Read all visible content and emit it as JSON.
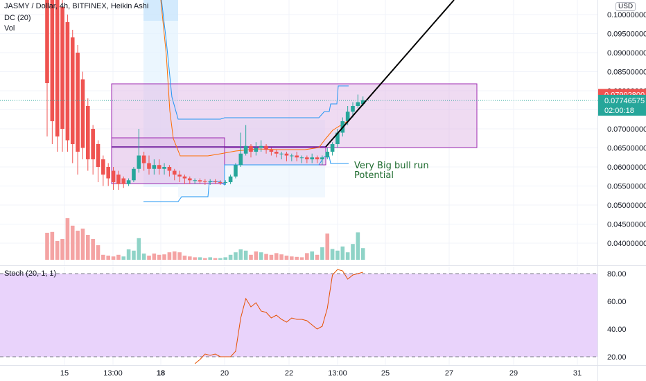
{
  "header": {
    "title": "JASMY / Dollar, 4h, BITFINEX, Heikin Ashi",
    "indicator_dc": "DC (20)",
    "indicator_vol": "Vol",
    "currency": "USD"
  },
  "stoch_label": "Stoch (20, 1, 1)",
  "annotation": [
    "Very Big bull run",
    "Potential"
  ],
  "price_labels": {
    "red": {
      "text": "0.07902800",
      "color": "#ef5350"
    },
    "teal_price": {
      "text": "0.07746575",
      "color": "#26a69a"
    },
    "teal_time": {
      "text": "02:00:18"
    }
  },
  "colors": {
    "up": "#26a69a",
    "down": "#ef5350",
    "vol_up": "#8fd3c7",
    "vol_down": "#f4a3a3",
    "dc": "#2196f3",
    "ma": "#ff6d00",
    "box_fill": "#e1bee7",
    "box_stroke": "#9c27b0",
    "stoch_band": "#e9d3fb",
    "stoch_line": "#e65100"
  },
  "chart_data": [
    {
      "type": "candlestick",
      "title": "JASMY / Dollar, 4h, BITFINEX, Heikin Ashi",
      "ylim": [
        0.036,
        0.102
      ],
      "y_ticks": [
        "0.10000000",
        "0.09500000",
        "0.09000000",
        "0.08500000",
        "0.08000000",
        "0.07500000",
        "0.07000000",
        "0.06500000",
        "0.06000000",
        "0.05500000",
        "0.05000000",
        "0.04500000",
        "0.04000000"
      ],
      "x_ticks": [
        "15",
        "13:00",
        "18",
        "20",
        "22",
        "13:00",
        "25",
        "27",
        "29",
        "31"
      ],
      "candles": [
        {
          "o": 0.12,
          "c": 0.082,
          "h": 0.125,
          "l": 0.068
        },
        {
          "o": 0.11,
          "c": 0.072,
          "h": 0.115,
          "l": 0.066
        },
        {
          "o": 0.104,
          "c": 0.068,
          "h": 0.108,
          "l": 0.064
        },
        {
          "o": 0.102,
          "c": 0.07,
          "h": 0.104,
          "l": 0.064
        },
        {
          "o": 0.098,
          "c": 0.067,
          "h": 0.1,
          "l": 0.064
        },
        {
          "o": 0.094,
          "c": 0.066,
          "h": 0.096,
          "l": 0.061
        },
        {
          "o": 0.09,
          "c": 0.064,
          "h": 0.092,
          "l": 0.058
        },
        {
          "o": 0.083,
          "c": 0.065,
          "h": 0.085,
          "l": 0.062
        },
        {
          "o": 0.076,
          "c": 0.062,
          "h": 0.078,
          "l": 0.059
        },
        {
          "o": 0.07,
          "c": 0.062,
          "h": 0.071,
          "l": 0.058
        },
        {
          "o": 0.066,
          "c": 0.06,
          "h": 0.067,
          "l": 0.056
        },
        {
          "o": 0.062,
          "c": 0.058,
          "h": 0.063,
          "l": 0.055
        },
        {
          "o": 0.06,
          "c": 0.057,
          "h": 0.061,
          "l": 0.055
        },
        {
          "o": 0.059,
          "c": 0.056,
          "h": 0.06,
          "l": 0.054
        },
        {
          "o": 0.058,
          "c": 0.0555,
          "h": 0.059,
          "l": 0.054
        },
        {
          "o": 0.057,
          "c": 0.0555,
          "h": 0.0575,
          "l": 0.0545
        },
        {
          "o": 0.0555,
          "c": 0.0565,
          "h": 0.057,
          "l": 0.055
        },
        {
          "o": 0.0565,
          "c": 0.0595,
          "h": 0.06,
          "l": 0.056
        },
        {
          "o": 0.0595,
          "c": 0.063,
          "h": 0.07,
          "l": 0.0585
        },
        {
          "o": 0.063,
          "c": 0.061,
          "h": 0.064,
          "l": 0.059
        },
        {
          "o": 0.061,
          "c": 0.0595,
          "h": 0.063,
          "l": 0.058
        },
        {
          "o": 0.0595,
          "c": 0.0605,
          "h": 0.062,
          "l": 0.058
        },
        {
          "o": 0.0605,
          "c": 0.0595,
          "h": 0.062,
          "l": 0.058
        },
        {
          "o": 0.0595,
          "c": 0.06,
          "h": 0.061,
          "l": 0.058
        },
        {
          "o": 0.06,
          "c": 0.059,
          "h": 0.0605,
          "l": 0.0575
        },
        {
          "o": 0.059,
          "c": 0.058,
          "h": 0.0595,
          "l": 0.0565
        },
        {
          "o": 0.058,
          "c": 0.0575,
          "h": 0.059,
          "l": 0.056
        },
        {
          "o": 0.0575,
          "c": 0.057,
          "h": 0.058,
          "l": 0.0555
        },
        {
          "o": 0.057,
          "c": 0.0565,
          "h": 0.0575,
          "l": 0.0555
        },
        {
          "o": 0.0565,
          "c": 0.0565,
          "h": 0.057,
          "l": 0.0555
        },
        {
          "o": 0.0565,
          "c": 0.0562,
          "h": 0.057,
          "l": 0.0555
        },
        {
          "o": 0.0562,
          "c": 0.056,
          "h": 0.0568,
          "l": 0.0553
        },
        {
          "o": 0.056,
          "c": 0.0562,
          "h": 0.0568,
          "l": 0.0553
        },
        {
          "o": 0.0562,
          "c": 0.056,
          "h": 0.0568,
          "l": 0.0555
        },
        {
          "o": 0.056,
          "c": 0.0558,
          "h": 0.0565,
          "l": 0.0553
        },
        {
          "o": 0.0558,
          "c": 0.056,
          "h": 0.0565,
          "l": 0.0553
        },
        {
          "o": 0.056,
          "c": 0.0575,
          "h": 0.058,
          "l": 0.0555
        },
        {
          "o": 0.0575,
          "c": 0.0605,
          "h": 0.061,
          "l": 0.057
        },
        {
          "o": 0.0605,
          "c": 0.0635,
          "h": 0.069,
          "l": 0.06
        },
        {
          "o": 0.0635,
          "c": 0.0655,
          "h": 0.071,
          "l": 0.063
        },
        {
          "o": 0.0655,
          "c": 0.064,
          "h": 0.066,
          "l": 0.0625
        },
        {
          "o": 0.064,
          "c": 0.065,
          "h": 0.0665,
          "l": 0.063
        },
        {
          "o": 0.065,
          "c": 0.0655,
          "h": 0.067,
          "l": 0.064
        },
        {
          "o": 0.0655,
          "c": 0.0645,
          "h": 0.066,
          "l": 0.0635
        },
        {
          "o": 0.0645,
          "c": 0.064,
          "h": 0.065,
          "l": 0.063
        },
        {
          "o": 0.064,
          "c": 0.0635,
          "h": 0.0645,
          "l": 0.0625
        },
        {
          "o": 0.0635,
          "c": 0.0635,
          "h": 0.064,
          "l": 0.062
        },
        {
          "o": 0.0635,
          "c": 0.063,
          "h": 0.064,
          "l": 0.0615
        },
        {
          "o": 0.063,
          "c": 0.063,
          "h": 0.0635,
          "l": 0.0615
        },
        {
          "o": 0.063,
          "c": 0.0625,
          "h": 0.064,
          "l": 0.0615
        },
        {
          "o": 0.0625,
          "c": 0.0625,
          "h": 0.063,
          "l": 0.061
        },
        {
          "o": 0.0625,
          "c": 0.062,
          "h": 0.063,
          "l": 0.061
        },
        {
          "o": 0.062,
          "c": 0.0625,
          "h": 0.0635,
          "l": 0.061
        },
        {
          "o": 0.0625,
          "c": 0.062,
          "h": 0.063,
          "l": 0.061
        },
        {
          "o": 0.062,
          "c": 0.0625,
          "h": 0.063,
          "l": 0.0605
        },
        {
          "o": 0.0625,
          "c": 0.064,
          "h": 0.065,
          "l": 0.062
        },
        {
          "o": 0.064,
          "c": 0.066,
          "h": 0.0665,
          "l": 0.063
        },
        {
          "o": 0.066,
          "c": 0.069,
          "h": 0.07,
          "l": 0.065
        },
        {
          "o": 0.069,
          "c": 0.072,
          "h": 0.073,
          "l": 0.068
        },
        {
          "o": 0.072,
          "c": 0.0745,
          "h": 0.076,
          "l": 0.071
        },
        {
          "o": 0.0745,
          "c": 0.076,
          "h": 0.077,
          "l": 0.073
        },
        {
          "o": 0.076,
          "c": 0.077,
          "h": 0.079,
          "l": 0.0755
        },
        {
          "o": 0.0765,
          "c": 0.0775,
          "h": 0.0785,
          "l": 0.076
        }
      ],
      "volume": [
        {
          "v": 0.0065,
          "up": false
        },
        {
          "v": 0.0067,
          "up": false
        },
        {
          "v": 0.0045,
          "up": false
        },
        {
          "v": 0.005,
          "up": false
        },
        {
          "v": 0.01,
          "up": false
        },
        {
          "v": 0.0082,
          "up": false
        },
        {
          "v": 0.007,
          "up": false
        },
        {
          "v": 0.0075,
          "up": false
        },
        {
          "v": 0.006,
          "up": false
        },
        {
          "v": 0.005,
          "up": false
        },
        {
          "v": 0.0035,
          "up": false
        },
        {
          "v": 0.0012,
          "up": false
        },
        {
          "v": 0.001,
          "up": false
        },
        {
          "v": 0.0008,
          "up": false
        },
        {
          "v": 0.0012,
          "up": false
        },
        {
          "v": 0.0008,
          "up": true
        },
        {
          "v": 0.0025,
          "up": true
        },
        {
          "v": 0.0022,
          "up": true
        },
        {
          "v": 0.0052,
          "up": true
        },
        {
          "v": 0.0015,
          "up": true
        },
        {
          "v": 0.001,
          "up": false
        },
        {
          "v": 0.0015,
          "up": false
        },
        {
          "v": 0.0012,
          "up": false
        },
        {
          "v": 0.0013,
          "up": false
        },
        {
          "v": 0.0018,
          "up": false
        },
        {
          "v": 0.002,
          "up": false
        },
        {
          "v": 0.0018,
          "up": false
        },
        {
          "v": 0.001,
          "up": false
        },
        {
          "v": 0.0008,
          "up": false
        },
        {
          "v": 0.0006,
          "up": false
        },
        {
          "v": 0.0006,
          "up": true
        },
        {
          "v": 0.0004,
          "up": false
        },
        {
          "v": 0.0006,
          "up": true
        },
        {
          "v": 0.0004,
          "up": false
        },
        {
          "v": 0.0004,
          "up": true
        },
        {
          "v": 0.0006,
          "up": true
        },
        {
          "v": 0.0012,
          "up": true
        },
        {
          "v": 0.0018,
          "up": true
        },
        {
          "v": 0.0025,
          "up": true
        },
        {
          "v": 0.0022,
          "up": true
        },
        {
          "v": 0.0012,
          "up": false
        },
        {
          "v": 0.002,
          "up": false
        },
        {
          "v": 0.0018,
          "up": true
        },
        {
          "v": 0.0014,
          "up": false
        },
        {
          "v": 0.0012,
          "up": false
        },
        {
          "v": 0.0016,
          "up": false
        },
        {
          "v": 0.0013,
          "up": false
        },
        {
          "v": 0.001,
          "up": false
        },
        {
          "v": 0.0008,
          "up": false
        },
        {
          "v": 0.0007,
          "up": false
        },
        {
          "v": 0.0006,
          "up": false
        },
        {
          "v": 0.0016,
          "up": false
        },
        {
          "v": 0.002,
          "up": true
        },
        {
          "v": 0.0012,
          "up": false
        },
        {
          "v": 0.003,
          "up": true
        },
        {
          "v": 0.0063,
          "up": false
        },
        {
          "v": 0.0026,
          "up": true
        },
        {
          "v": 0.0022,
          "up": true
        },
        {
          "v": 0.0032,
          "up": true
        },
        {
          "v": 0.0018,
          "up": true
        },
        {
          "v": 0.0038,
          "up": true
        },
        {
          "v": 0.0066,
          "up": true
        },
        {
          "v": 0.0028,
          "up": true
        }
      ]
    },
    {
      "type": "line",
      "title": "Stoch (20, 1, 1)",
      "ylim": [
        16,
        82
      ],
      "y_ticks": [
        "80.00",
        "60.00",
        "40.00",
        "20.00"
      ],
      "band": [
        20,
        80
      ],
      "values": [
        null,
        null,
        null,
        null,
        null,
        null,
        null,
        null,
        null,
        null,
        null,
        null,
        null,
        null,
        null,
        null,
        null,
        null,
        null,
        null,
        null,
        null,
        null,
        null,
        null,
        null,
        null,
        null,
        null,
        15,
        18,
        22,
        21,
        22,
        20,
        20,
        20,
        24,
        48,
        62,
        56,
        59,
        53,
        52,
        48,
        50,
        47,
        45,
        48,
        47,
        47,
        46,
        43,
        40,
        42,
        55,
        79,
        83,
        82,
        76,
        79,
        80,
        81
      ]
    }
  ]
}
